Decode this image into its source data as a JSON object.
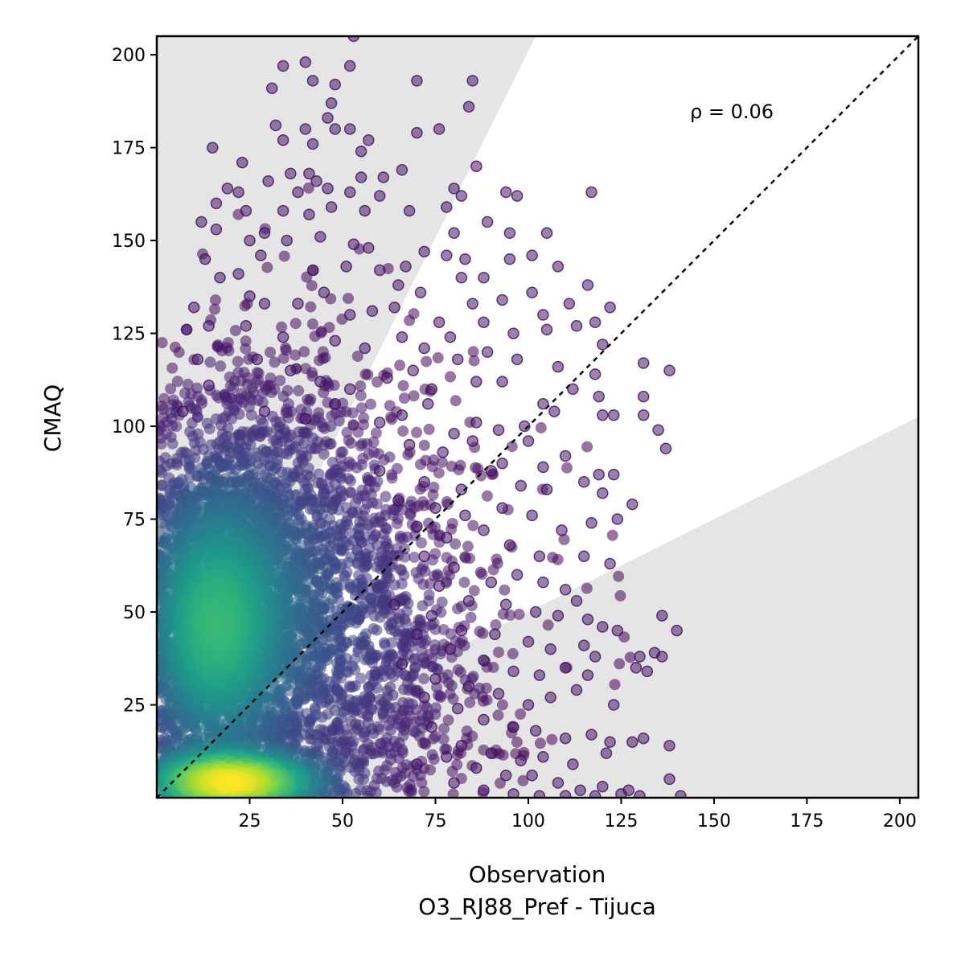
{
  "chart_data": {
    "type": "scatter",
    "title": "",
    "xlabel": "Observation",
    "xlabel_sub": "O3_RJ88_Pref - Tijuca",
    "ylabel": "CMAQ",
    "xlim": [
      0,
      205
    ],
    "ylim": [
      0,
      205
    ],
    "xticks": [
      25,
      50,
      75,
      100,
      125,
      150,
      175,
      200
    ],
    "yticks": [
      25,
      50,
      75,
      100,
      125,
      150,
      175,
      200
    ],
    "annotation": "ρ = 0.06",
    "grid": false,
    "identity_line": true,
    "shaded_regions": [
      {
        "name": "upper",
        "polygon": [
          [
            0,
            0
          ],
          [
            102,
            205
          ],
          [
            0,
            205
          ]
        ]
      },
      {
        "name": "lower",
        "polygon": [
          [
            0,
            0
          ],
          [
            205,
            0
          ],
          [
            205,
            102.5
          ]
        ]
      }
    ],
    "colormap": "viridis",
    "colors": {
      "shade": "#e5e5e5",
      "point_low": "#440154",
      "point_high": "#fde725"
    },
    "density_clusters": [
      {
        "cx": 15,
        "cy": 45,
        "sx": 12,
        "sy": 22,
        "n": 2600
      },
      {
        "cx": 20,
        "cy": 4,
        "sx": 15,
        "sy": 5,
        "n": 1400
      },
      {
        "cx": 25,
        "cy": 65,
        "sx": 22,
        "sy": 30,
        "n": 1800
      },
      {
        "cx": 45,
        "cy": 40,
        "sx": 25,
        "sy": 28,
        "n": 1500
      }
    ],
    "points": [
      [
        53,
        205
      ],
      [
        40,
        198
      ],
      [
        52,
        197
      ],
      [
        48,
        192
      ],
      [
        34,
        197
      ],
      [
        85,
        193
      ],
      [
        70,
        193
      ],
      [
        47,
        187
      ],
      [
        31,
        191
      ],
      [
        42,
        193
      ],
      [
        84,
        186
      ],
      [
        40,
        180
      ],
      [
        32,
        181
      ],
      [
        46,
        183
      ],
      [
        48,
        180
      ],
      [
        52,
        180
      ],
      [
        42,
        176
      ],
      [
        34,
        177
      ],
      [
        15,
        175
      ],
      [
        23,
        171
      ],
      [
        70,
        179
      ],
      [
        76,
        180
      ],
      [
        55,
        174
      ],
      [
        57,
        177
      ],
      [
        36,
        168
      ],
      [
        41,
        168
      ],
      [
        43,
        166
      ],
      [
        19,
        164
      ],
      [
        22,
        163
      ],
      [
        30,
        166
      ],
      [
        38,
        163
      ],
      [
        46,
        164
      ],
      [
        52,
        163
      ],
      [
        55,
        167
      ],
      [
        61,
        167
      ],
      [
        66,
        169
      ],
      [
        86,
        170
      ],
      [
        80,
        164
      ],
      [
        82,
        162
      ],
      [
        94,
        163
      ],
      [
        97,
        162
      ],
      [
        117,
        163
      ],
      [
        78,
        159
      ],
      [
        68,
        158
      ],
      [
        60,
        162
      ],
      [
        16,
        160
      ],
      [
        24,
        158
      ],
      [
        34,
        158
      ],
      [
        41,
        157
      ],
      [
        47,
        159
      ],
      [
        56,
        158
      ],
      [
        12,
        155
      ],
      [
        16,
        153
      ],
      [
        25,
        150
      ],
      [
        29,
        152
      ],
      [
        35,
        150
      ],
      [
        44,
        151
      ],
      [
        53,
        149
      ],
      [
        57,
        148
      ],
      [
        80,
        152
      ],
      [
        89,
        155
      ],
      [
        95,
        152
      ],
      [
        105,
        152
      ],
      [
        78,
        146
      ],
      [
        83,
        145
      ],
      [
        88,
        140
      ],
      [
        95,
        145
      ],
      [
        101,
        146
      ],
      [
        108,
        143
      ],
      [
        116,
        138
      ],
      [
        13,
        145
      ],
      [
        17,
        140
      ],
      [
        22,
        141
      ],
      [
        28,
        146
      ],
      [
        42,
        142
      ],
      [
        51,
        143
      ],
      [
        60,
        142
      ],
      [
        67,
        143
      ],
      [
        72,
        147
      ],
      [
        82,
        140
      ],
      [
        65,
        138
      ],
      [
        25,
        135
      ],
      [
        29,
        133
      ],
      [
        38,
        133
      ],
      [
        45,
        136
      ],
      [
        52,
        130
      ],
      [
        58,
        131
      ],
      [
        64,
        132
      ],
      [
        71,
        136
      ],
      [
        76,
        128
      ],
      [
        85,
        133
      ],
      [
        93,
        134
      ],
      [
        101,
        136
      ],
      [
        104,
        130
      ],
      [
        111,
        133
      ],
      [
        118,
        128
      ],
      [
        122,
        132
      ],
      [
        10,
        132
      ],
      [
        8,
        126
      ],
      [
        14,
        127
      ],
      [
        24,
        127
      ],
      [
        34,
        124
      ],
      [
        48,
        123
      ],
      [
        56,
        121
      ],
      [
        66,
        124
      ],
      [
        72,
        121
      ],
      [
        79,
        124
      ],
      [
        88,
        128
      ],
      [
        96,
        125
      ],
      [
        105,
        126
      ],
      [
        113,
        127
      ],
      [
        120,
        122
      ],
      [
        81,
        118
      ],
      [
        89,
        120
      ],
      [
        97,
        118
      ],
      [
        108,
        116
      ],
      [
        118,
        114
      ],
      [
        131,
        117
      ],
      [
        138,
        115
      ],
      [
        11,
        118
      ],
      [
        14,
        111
      ],
      [
        27,
        118
      ],
      [
        36,
        115
      ],
      [
        44,
        112
      ],
      [
        52,
        110
      ],
      [
        62,
        113
      ],
      [
        69,
        115
      ],
      [
        74,
        110
      ],
      [
        86,
        112
      ],
      [
        93,
        112
      ],
      [
        104,
        106
      ],
      [
        112,
        110
      ],
      [
        119,
        108
      ],
      [
        131,
        108
      ],
      [
        7,
        104
      ],
      [
        29,
        104
      ],
      [
        40,
        102
      ],
      [
        48,
        106
      ],
      [
        60,
        101
      ],
      [
        66,
        103
      ],
      [
        73,
        106
      ],
      [
        80,
        98
      ],
      [
        86,
        101
      ],
      [
        92,
        99
      ],
      [
        99,
        100
      ],
      [
        107,
        104
      ],
      [
        120,
        103
      ],
      [
        123,
        103
      ],
      [
        131,
        103
      ],
      [
        135,
        99
      ],
      [
        137,
        94
      ],
      [
        68,
        95
      ],
      [
        77,
        93
      ],
      [
        85,
        96
      ],
      [
        93,
        90
      ],
      [
        100,
        96
      ],
      [
        104,
        89
      ],
      [
        110,
        92
      ],
      [
        119,
        87
      ],
      [
        123,
        87
      ],
      [
        60,
        88
      ],
      [
        72,
        85
      ],
      [
        82,
        83
      ],
      [
        90,
        88
      ],
      [
        98,
        84
      ],
      [
        105,
        83
      ],
      [
        115,
        85
      ],
      [
        120,
        82
      ],
      [
        128,
        79
      ],
      [
        65,
        80
      ],
      [
        75,
        78
      ],
      [
        83,
        76
      ],
      [
        93,
        78
      ],
      [
        101,
        76
      ],
      [
        109,
        72
      ],
      [
        117,
        74
      ],
      [
        124,
        75
      ],
      [
        70,
        73
      ],
      [
        78,
        70
      ],
      [
        88,
        72
      ],
      [
        95,
        68
      ],
      [
        103,
        65
      ],
      [
        115,
        65
      ],
      [
        122,
        63
      ],
      [
        72,
        65
      ],
      [
        80,
        62
      ],
      [
        90,
        58
      ],
      [
        97,
        60
      ],
      [
        104,
        58
      ],
      [
        110,
        56
      ],
      [
        113,
        53
      ],
      [
        76,
        57
      ],
      [
        84,
        53
      ],
      [
        94,
        52
      ],
      [
        102,
        50
      ],
      [
        108,
        49
      ],
      [
        116,
        48
      ],
      [
        120,
        46
      ],
      [
        124,
        45
      ],
      [
        136,
        49
      ],
      [
        140,
        45
      ],
      [
        64,
        52
      ],
      [
        74,
        49
      ],
      [
        82,
        45
      ],
      [
        91,
        44
      ],
      [
        100,
        42
      ],
      [
        106,
        40
      ],
      [
        115,
        41
      ],
      [
        118,
        38
      ],
      [
        130,
        38
      ],
      [
        134,
        39
      ],
      [
        136,
        38
      ],
      [
        70,
        44
      ],
      [
        79,
        40
      ],
      [
        88,
        37
      ],
      [
        96,
        34
      ],
      [
        103,
        33
      ],
      [
        110,
        35
      ],
      [
        116,
        33
      ],
      [
        129,
        35
      ],
      [
        132,
        34
      ],
      [
        66,
        36
      ],
      [
        75,
        32
      ],
      [
        84,
        30
      ],
      [
        92,
        28
      ],
      [
        100,
        25
      ],
      [
        106,
        27
      ],
      [
        113,
        29
      ],
      [
        123,
        25
      ],
      [
        72,
        27
      ],
      [
        81,
        24
      ],
      [
        88,
        21
      ],
      [
        96,
        19
      ],
      [
        102,
        18
      ],
      [
        110,
        16
      ],
      [
        117,
        17
      ],
      [
        122,
        15
      ],
      [
        128,
        15
      ],
      [
        138,
        14
      ],
      [
        74,
        19
      ],
      [
        82,
        14
      ],
      [
        90,
        12
      ],
      [
        98,
        10
      ],
      [
        104,
        11
      ],
      [
        112,
        9
      ],
      [
        121,
        12
      ],
      [
        131,
        16
      ],
      [
        78,
        11
      ],
      [
        86,
        8
      ],
      [
        94,
        6
      ],
      [
        101,
        6
      ],
      [
        108,
        4
      ],
      [
        114,
        2
      ],
      [
        120,
        3
      ],
      [
        127,
        2
      ],
      [
        138,
        5
      ],
      [
        70,
        9
      ],
      [
        80,
        4
      ],
      [
        88,
        2
      ],
      [
        96,
        1
      ],
      [
        103,
        0.5
      ],
      [
        110,
        0.5
      ],
      [
        118,
        0.5
      ],
      [
        130,
        0.5
      ],
      [
        141,
        0.5
      ],
      [
        125,
        1
      ]
    ]
  }
}
